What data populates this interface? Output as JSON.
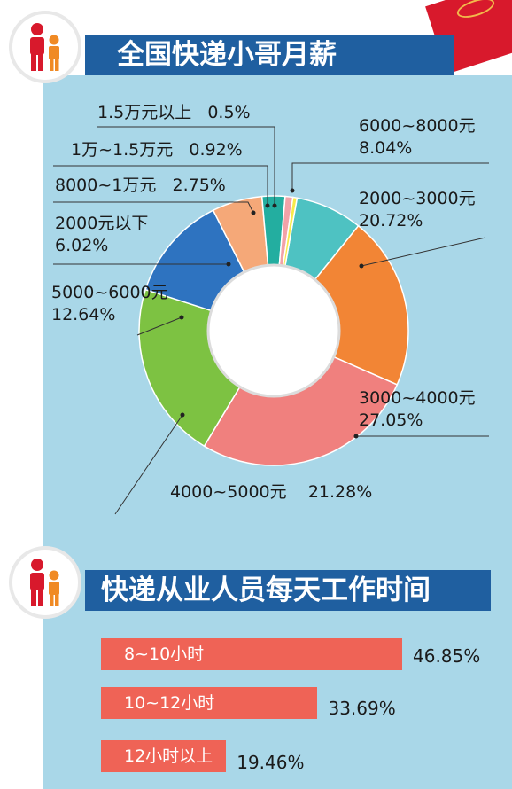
{
  "section1": {
    "title": "全国快递小哥月薪"
  },
  "section2": {
    "title": "快递从业人员每天工作时间"
  },
  "chart_data": [
    {
      "type": "pie",
      "title": "全国快递小哥月薪",
      "slices": [
        {
          "label": "6000~8000元",
          "value": 8.04,
          "value_label": "8.04%",
          "color": "#4ec2c2"
        },
        {
          "label": "2000~3000元",
          "value": 20.72,
          "value_label": "20.72%",
          "color": "#f28535"
        },
        {
          "label": "3000~4000元",
          "value": 27.05,
          "value_label": "27.05%",
          "color": "#f0807e"
        },
        {
          "label": "4000~5000元",
          "value": 21.28,
          "value_label": "21.28%",
          "color": "#7dc242"
        },
        {
          "label": "5000~6000元",
          "value": 12.64,
          "value_label": "12.64%",
          "color": "#2e73c0"
        },
        {
          "label": "2000元以下",
          "value": 6.02,
          "value_label": "6.02%",
          "color": "#f5a878"
        },
        {
          "label": "8000~1万元",
          "value": 2.75,
          "value_label": "2.75%",
          "color": "#23aea0"
        },
        {
          "label": "1万~1.5万元",
          "value": 0.92,
          "value_label": "0.92%",
          "color": "#f2a2a8"
        },
        {
          "label": "1.5万元以上",
          "value": 0.5,
          "value_label": "0.5%",
          "color": "#f7ea4a"
        }
      ]
    },
    {
      "type": "bar",
      "title": "快递从业人员每天工作时间",
      "categories": [
        "8~10小时",
        "10~12小时",
        "12小时以上"
      ],
      "values": [
        46.85,
        33.69,
        19.46
      ],
      "value_labels": [
        "46.85%",
        "33.69%",
        "19.46%"
      ],
      "color": "#ef6356"
    }
  ]
}
